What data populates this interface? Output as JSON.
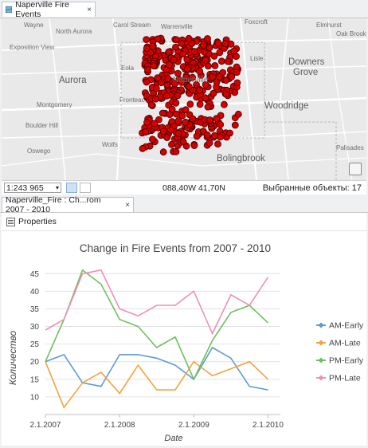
{
  "map_tab": {
    "title": "Naperville Fire Events",
    "close": "×"
  },
  "map": {
    "labels": [
      {
        "text": "Wayne",
        "cls": "small",
        "name": "map-label-wayne"
      },
      {
        "text": "Carol Stream",
        "cls": "small",
        "name": "map-label-carol-stream"
      },
      {
        "text": "Elmhurst",
        "cls": "small",
        "name": "map-label-elmhurst"
      },
      {
        "text": "North Aurora",
        "cls": "small",
        "name": "map-label-north-aurora"
      },
      {
        "text": "Warrenville",
        "cls": "small",
        "name": "map-label-warrenville"
      },
      {
        "text": "Foxcroft",
        "cls": "small",
        "name": "map-label-foxcroft"
      },
      {
        "text": "Oak Brook",
        "cls": "small",
        "name": "map-label-oak-brook"
      },
      {
        "text": "Exposition View",
        "cls": "small",
        "name": "map-label-exposition-view"
      },
      {
        "text": "Lisle",
        "cls": "small",
        "name": "map-label-lisle"
      },
      {
        "text": "Downers",
        "cls": "big",
        "name": "map-label-downers"
      },
      {
        "text": "Grove",
        "cls": "big",
        "name": "map-label-grove"
      },
      {
        "text": "Aurora",
        "cls": "big",
        "name": "map-label-aurora"
      },
      {
        "text": "Eola",
        "cls": "small",
        "name": "map-label-eola"
      },
      {
        "text": "Naperville",
        "cls": "mid",
        "name": "map-label-naperville"
      },
      {
        "text": "Fronteac",
        "cls": "small",
        "name": "map-label-fronteac"
      },
      {
        "text": "Woodridge",
        "cls": "big",
        "name": "map-label-woodridge"
      },
      {
        "text": "Montgomery",
        "cls": "small",
        "name": "map-label-montgomery"
      },
      {
        "text": "Boulder Hill",
        "cls": "small",
        "name": "map-label-boulder-hill"
      },
      {
        "text": "Wolfs",
        "cls": "small",
        "name": "map-label-wolfs"
      },
      {
        "text": "Oswego",
        "cls": "small",
        "name": "map-label-oswego"
      },
      {
        "text": "Bolingbrook",
        "cls": "big",
        "name": "map-label-bolingbrook"
      },
      {
        "text": "Palisades",
        "cls": "small",
        "name": "map-label-palisades"
      }
    ]
  },
  "map_status": {
    "scale": "1:243 965",
    "coordinates": "088,40W 41,70N",
    "selected_features": "Выбранные объекты: 17"
  },
  "chart_tab": {
    "title": "Naperville_Fire : Ch...rom 2007 - 2010",
    "close": "×"
  },
  "toolbar": {
    "properties_label": "Properties"
  },
  "chart_data": {
    "type": "line",
    "title": "Change in Fire Events from 2007 - 2010",
    "xlabel": "Date",
    "ylabel": "Количество",
    "x_tick_labels": [
      "2.1.2007",
      "2.1.2008",
      "2.1.2009",
      "2.1.2010"
    ],
    "x_range": [
      "2007-01",
      "2010-03"
    ],
    "ylim": [
      5,
      48
    ],
    "y_ticks": [
      10,
      15,
      20,
      25,
      30,
      35,
      40,
      45
    ],
    "grid": "horizontal",
    "legend_position": "right",
    "x": [
      "2007-01",
      "2007-04",
      "2007-07",
      "2007-10",
      "2008-01",
      "2008-04",
      "2008-07",
      "2008-10",
      "2009-01",
      "2009-04",
      "2009-07",
      "2009-10",
      "2010-01"
    ],
    "series": [
      {
        "name": "AM-Early",
        "color": "#5b9bd5",
        "values": [
          20,
          22,
          14,
          13,
          22,
          22,
          21,
          19,
          15,
          24,
          21,
          13,
          12
        ]
      },
      {
        "name": "AM-Late",
        "color": "#f4a23c",
        "values": [
          20,
          7,
          14,
          17,
          11,
          19,
          12,
          12,
          20,
          16,
          18,
          20,
          15
        ]
      },
      {
        "name": "PM-Early",
        "color": "#6fbf5e",
        "values": [
          20,
          32,
          46,
          42,
          32,
          30,
          24,
          27,
          15,
          26,
          34,
          36,
          31
        ]
      },
      {
        "name": "PM-Late",
        "color": "#f08fb4",
        "values": [
          29,
          32,
          45,
          46,
          35,
          33,
          36,
          36,
          40,
          28,
          39,
          36,
          44
        ]
      }
    ]
  }
}
